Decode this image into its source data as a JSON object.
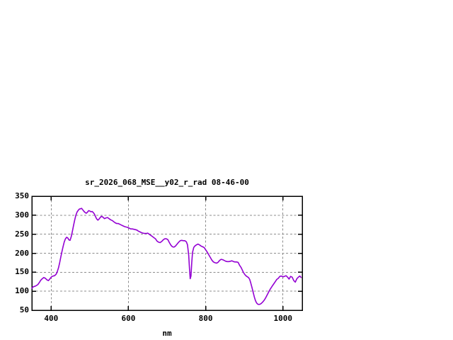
{
  "window": {
    "background": "#ffffff"
  },
  "colors": {
    "line": "#9400d3",
    "grid": "#8c8c8c",
    "border": "#000000",
    "text": "#000000"
  },
  "chart_data": {
    "type": "line",
    "title": "sr_2026_068_MSE__y02_r_rad 08-46-00",
    "xlabel": "nm",
    "ylabel": "",
    "xlim": [
      350,
      1050
    ],
    "ylim": [
      50,
      350
    ],
    "x_ticks": [
      400,
      600,
      800,
      1000
    ],
    "y_ticks": [
      50,
      100,
      150,
      200,
      250,
      300,
      350
    ],
    "grid": "dotted",
    "legend": "none",
    "points": [
      [
        350,
        108
      ],
      [
        354,
        112
      ],
      [
        358,
        113
      ],
      [
        362,
        115
      ],
      [
        366,
        118
      ],
      [
        370,
        124
      ],
      [
        373,
        129
      ],
      [
        377,
        133
      ],
      [
        381,
        136
      ],
      [
        385,
        134
      ],
      [
        389,
        130
      ],
      [
        393,
        128
      ],
      [
        397,
        133
      ],
      [
        401,
        138
      ],
      [
        405,
        140
      ],
      [
        409,
        141
      ],
      [
        413,
        145
      ],
      [
        416,
        152
      ],
      [
        419,
        162
      ],
      [
        422,
        175
      ],
      [
        425,
        190
      ],
      [
        428,
        205
      ],
      [
        431,
        218
      ],
      [
        434,
        230
      ],
      [
        437,
        238
      ],
      [
        440,
        242
      ],
      [
        443,
        240
      ],
      [
        446,
        235
      ],
      [
        449,
        234
      ],
      [
        452,
        244
      ],
      [
        455,
        258
      ],
      [
        458,
        273
      ],
      [
        461,
        288
      ],
      [
        464,
        300
      ],
      [
        467,
        308
      ],
      [
        470,
        313
      ],
      [
        473,
        316
      ],
      [
        476,
        317
      ],
      [
        479,
        318
      ],
      [
        482,
        314
      ],
      [
        485,
        310
      ],
      [
        488,
        307
      ],
      [
        491,
        305
      ],
      [
        494,
        308
      ],
      [
        497,
        312
      ],
      [
        500,
        311
      ],
      [
        503,
        309
      ],
      [
        506,
        310
      ],
      [
        509,
        307
      ],
      [
        512,
        303
      ],
      [
        515,
        296
      ],
      [
        518,
        290
      ],
      [
        521,
        287
      ],
      [
        524,
        290
      ],
      [
        527,
        294
      ],
      [
        530,
        297
      ],
      [
        534,
        295
      ],
      [
        538,
        291
      ],
      [
        542,
        293
      ],
      [
        546,
        294
      ],
      [
        550,
        291
      ],
      [
        554,
        288
      ],
      [
        558,
        286
      ],
      [
        562,
        283
      ],
      [
        566,
        280
      ],
      [
        570,
        278
      ],
      [
        574,
        278
      ],
      [
        578,
        276
      ],
      [
        582,
        274
      ],
      [
        586,
        272
      ],
      [
        590,
        270
      ],
      [
        594,
        269
      ],
      [
        598,
        268
      ],
      [
        602,
        266
      ],
      [
        606,
        264
      ],
      [
        610,
        264
      ],
      [
        614,
        263
      ],
      [
        618,
        262
      ],
      [
        622,
        261
      ],
      [
        626,
        258
      ],
      [
        630,
        256
      ],
      [
        634,
        254
      ],
      [
        638,
        253
      ],
      [
        642,
        252
      ],
      [
        646,
        252
      ],
      [
        650,
        253
      ],
      [
        654,
        250
      ],
      [
        658,
        247
      ],
      [
        662,
        244
      ],
      [
        666,
        241
      ],
      [
        670,
        238
      ],
      [
        674,
        232
      ],
      [
        678,
        229
      ],
      [
        682,
        228
      ],
      [
        686,
        231
      ],
      [
        690,
        235
      ],
      [
        694,
        238
      ],
      [
        698,
        238
      ],
      [
        702,
        236
      ],
      [
        706,
        228
      ],
      [
        710,
        221
      ],
      [
        714,
        217
      ],
      [
        718,
        216
      ],
      [
        722,
        219
      ],
      [
        726,
        224
      ],
      [
        730,
        229
      ],
      [
        734,
        233
      ],
      [
        738,
        234
      ],
      [
        742,
        233
      ],
      [
        746,
        233
      ],
      [
        750,
        230
      ],
      [
        753,
        222
      ],
      [
        756,
        195
      ],
      [
        758,
        160
      ],
      [
        760,
        133
      ],
      [
        762,
        140
      ],
      [
        764,
        175
      ],
      [
        766,
        202
      ],
      [
        769,
        215
      ],
      [
        772,
        219
      ],
      [
        776,
        222
      ],
      [
        780,
        224
      ],
      [
        784,
        222
      ],
      [
        788,
        219
      ],
      [
        792,
        217
      ],
      [
        796,
        215
      ],
      [
        800,
        209
      ],
      [
        804,
        203
      ],
      [
        808,
        196
      ],
      [
        812,
        189
      ],
      [
        816,
        182
      ],
      [
        820,
        177
      ],
      [
        824,
        175
      ],
      [
        828,
        174
      ],
      [
        832,
        176
      ],
      [
        836,
        181
      ],
      [
        840,
        184
      ],
      [
        844,
        183
      ],
      [
        848,
        181
      ],
      [
        852,
        179
      ],
      [
        856,
        178
      ],
      [
        860,
        178
      ],
      [
        864,
        179
      ],
      [
        868,
        180
      ],
      [
        872,
        178
      ],
      [
        876,
        177
      ],
      [
        880,
        177
      ],
      [
        884,
        176
      ],
      [
        888,
        168
      ],
      [
        892,
        162
      ],
      [
        896,
        153
      ],
      [
        900,
        146
      ],
      [
        904,
        141
      ],
      [
        908,
        138
      ],
      [
        911,
        136
      ],
      [
        914,
        131
      ],
      [
        917,
        121
      ],
      [
        920,
        109
      ],
      [
        923,
        97
      ],
      [
        926,
        85
      ],
      [
        929,
        75
      ],
      [
        932,
        69
      ],
      [
        935,
        66
      ],
      [
        938,
        65
      ],
      [
        941,
        66
      ],
      [
        944,
        68
      ],
      [
        948,
        72
      ],
      [
        952,
        77
      ],
      [
        956,
        84
      ],
      [
        960,
        92
      ],
      [
        964,
        100
      ],
      [
        968,
        107
      ],
      [
        972,
        113
      ],
      [
        976,
        119
      ],
      [
        980,
        125
      ],
      [
        984,
        131
      ],
      [
        988,
        134
      ],
      [
        992,
        139
      ],
      [
        996,
        140
      ],
      [
        1000,
        138
      ],
      [
        1004,
        139
      ],
      [
        1008,
        141
      ],
      [
        1012,
        137
      ],
      [
        1016,
        132
      ],
      [
        1020,
        139
      ],
      [
        1024,
        137
      ],
      [
        1028,
        128
      ],
      [
        1032,
        124
      ],
      [
        1036,
        133
      ],
      [
        1040,
        137
      ],
      [
        1044,
        140
      ],
      [
        1047,
        136
      ]
    ]
  }
}
